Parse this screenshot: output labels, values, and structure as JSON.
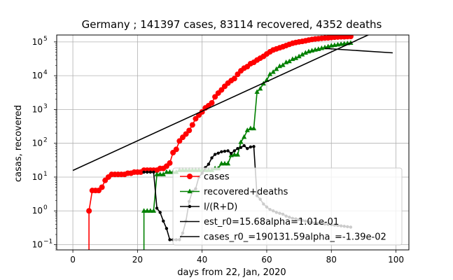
{
  "chart_data": {
    "type": "line",
    "title": "Germany ; 141397 cases, 83114 recovered, 4352 deaths",
    "xlabel": "days from 22, Jan, 2020",
    "ylabel": "casas, recovered",
    "xlim": [
      -5,
      104
    ],
    "ylim": [
      0.07,
      160000
    ],
    "yscale": "log",
    "grid": true,
    "legend_position": "lower-right",
    "x_ticks": [
      0,
      20,
      40,
      60,
      80,
      100
    ],
    "y_ticks": [
      {
        "value": 0.1,
        "label": "10",
        "exp": "−1"
      },
      {
        "value": 1,
        "label": "10",
        "exp": "0"
      },
      {
        "value": 10,
        "label": "10",
        "exp": "1"
      },
      {
        "value": 100,
        "label": "10",
        "exp": "2"
      },
      {
        "value": 1000,
        "label": "10",
        "exp": "3"
      },
      {
        "value": 10000,
        "label": "10",
        "exp": "4"
      },
      {
        "value": 100000,
        "label": "10",
        "exp": "5"
      }
    ],
    "series": [
      {
        "name": "cases",
        "color": "#ff0000",
        "marker": "circle",
        "x": [
          5,
          6,
          7,
          8,
          9,
          10,
          11,
          12,
          13,
          14,
          15,
          16,
          17,
          18,
          19,
          20,
          21,
          22,
          23,
          24,
          25,
          26,
          27,
          28,
          29,
          30,
          31,
          32,
          33,
          34,
          35,
          36,
          37,
          38,
          39,
          40,
          41,
          42,
          43,
          44,
          45,
          46,
          47,
          48,
          49,
          50,
          51,
          52,
          53,
          54,
          55,
          56,
          57,
          58,
          59,
          60,
          61,
          62,
          63,
          64,
          65,
          66,
          67,
          68,
          69,
          70,
          71,
          72,
          73,
          74,
          75,
          76,
          77,
          78,
          79,
          80,
          81,
          82,
          83,
          84,
          85,
          86
        ],
        "y": [
          1,
          4,
          4,
          4,
          5,
          8,
          10,
          12,
          12,
          12,
          12,
          12,
          13,
          13,
          14,
          14,
          14,
          16,
          16,
          16,
          16,
          16,
          18,
          18,
          21,
          26,
          53,
          66,
          117,
          150,
          188,
          240,
          349,
          534,
          684,
          847,
          1112,
          1296,
          1567,
          2369,
          3062,
          3795,
          4838,
          6012,
          7156,
          8198,
          10999,
          13957,
          16662,
          18610,
          22672,
          24873,
          29056,
          32986,
          37323,
          43938,
          50871,
          57695,
          62095,
          66885,
          71808,
          77872,
          84794,
          91159,
          96092,
          100123,
          103374,
          107663,
          113296,
          118181,
          122171,
          124908,
          127854,
          130072,
          131359,
          134753,
          137698,
          139897,
          141397,
          141672,
          143342,
          145184
        ]
      },
      {
        "name": "recovered+deaths",
        "color": "#008000",
        "marker": "triangle",
        "x": [
          22,
          23,
          24,
          25,
          26,
          27,
          28,
          29,
          30,
          31,
          32,
          33,
          34,
          35,
          36,
          37,
          38,
          39,
          40,
          41,
          42,
          43,
          44,
          45,
          46,
          47,
          48,
          49,
          50,
          51,
          52,
          53,
          54,
          55,
          56,
          57,
          58,
          59,
          60,
          61,
          62,
          63,
          64,
          65,
          66,
          67,
          68,
          69,
          70,
          71,
          72,
          73,
          74,
          75,
          76,
          77,
          78,
          79,
          80,
          81,
          82,
          83,
          84,
          85,
          86
        ],
        "y": [
          1,
          1,
          1,
          1,
          12,
          12,
          12,
          14,
          14,
          14,
          14,
          16,
          16,
          16,
          16,
          16,
          16,
          16,
          16,
          16,
          16,
          16,
          18,
          18,
          25,
          25,
          25,
          44,
          46,
          46,
          108,
          153,
          242,
          275,
          275,
          3300,
          4100,
          5800,
          7400,
          11000,
          12800,
          15600,
          19000,
          20500,
          24700,
          26500,
          30800,
          32900,
          37200,
          42000,
          47500,
          51700,
          55100,
          58200,
          61000,
          64900,
          68500,
          72800,
          77100,
          79800,
          83100,
          85800,
          88000,
          90500,
          93000
        ]
      },
      {
        "name": "I/(R+D)",
        "color": "#000000",
        "marker": "dot",
        "x": [
          22,
          23,
          24,
          25,
          26,
          27,
          28,
          29,
          30,
          31,
          32,
          33,
          34,
          35,
          36,
          37,
          38,
          39,
          40,
          41,
          42,
          43,
          44,
          45,
          46,
          47,
          48,
          49,
          50,
          51,
          52,
          53,
          54,
          55,
          56,
          57,
          58,
          59,
          60,
          61,
          62,
          63,
          64,
          65,
          66,
          67,
          68,
          69,
          70,
          71,
          72,
          73,
          74,
          75,
          76,
          77,
          78,
          79,
          80,
          81,
          82,
          83,
          84,
          85,
          86
        ],
        "y": [
          14,
          14,
          14,
          14,
          1.2,
          0.9,
          0.5,
          0.3,
          0.14,
          0.14,
          0.14,
          0.14,
          0.22,
          0.5,
          1.9,
          3.8,
          4.5,
          10,
          13,
          19,
          24,
          37,
          47,
          51,
          56,
          58,
          60,
          50,
          60,
          70,
          75,
          85,
          70,
          78,
          80,
          2.8,
          2.2,
          1.6,
          1.3,
          1.1,
          1.0,
          0.9,
          0.85,
          0.8,
          0.7,
          0.65,
          0.6,
          0.58,
          0.55,
          0.52,
          0.5,
          0.47,
          0.45,
          0.44,
          0.43,
          0.42,
          0.41,
          0.4,
          0.39,
          0.38,
          0.37,
          0.36,
          0.35,
          0.34,
          0.33
        ]
      },
      {
        "name": "est_r0=15.68alpha=1.01e-01",
        "color": "#000000",
        "marker": "none",
        "x": [
          0,
          99
        ],
        "y": [
          15.68,
          345000
        ]
      },
      {
        "name": "cases_r0_=190131.59alpha_=-1.39e-02",
        "color": "#000000",
        "marker": "none",
        "x": [
          78,
          99
        ],
        "y": [
          64000,
          47500
        ]
      }
    ]
  }
}
